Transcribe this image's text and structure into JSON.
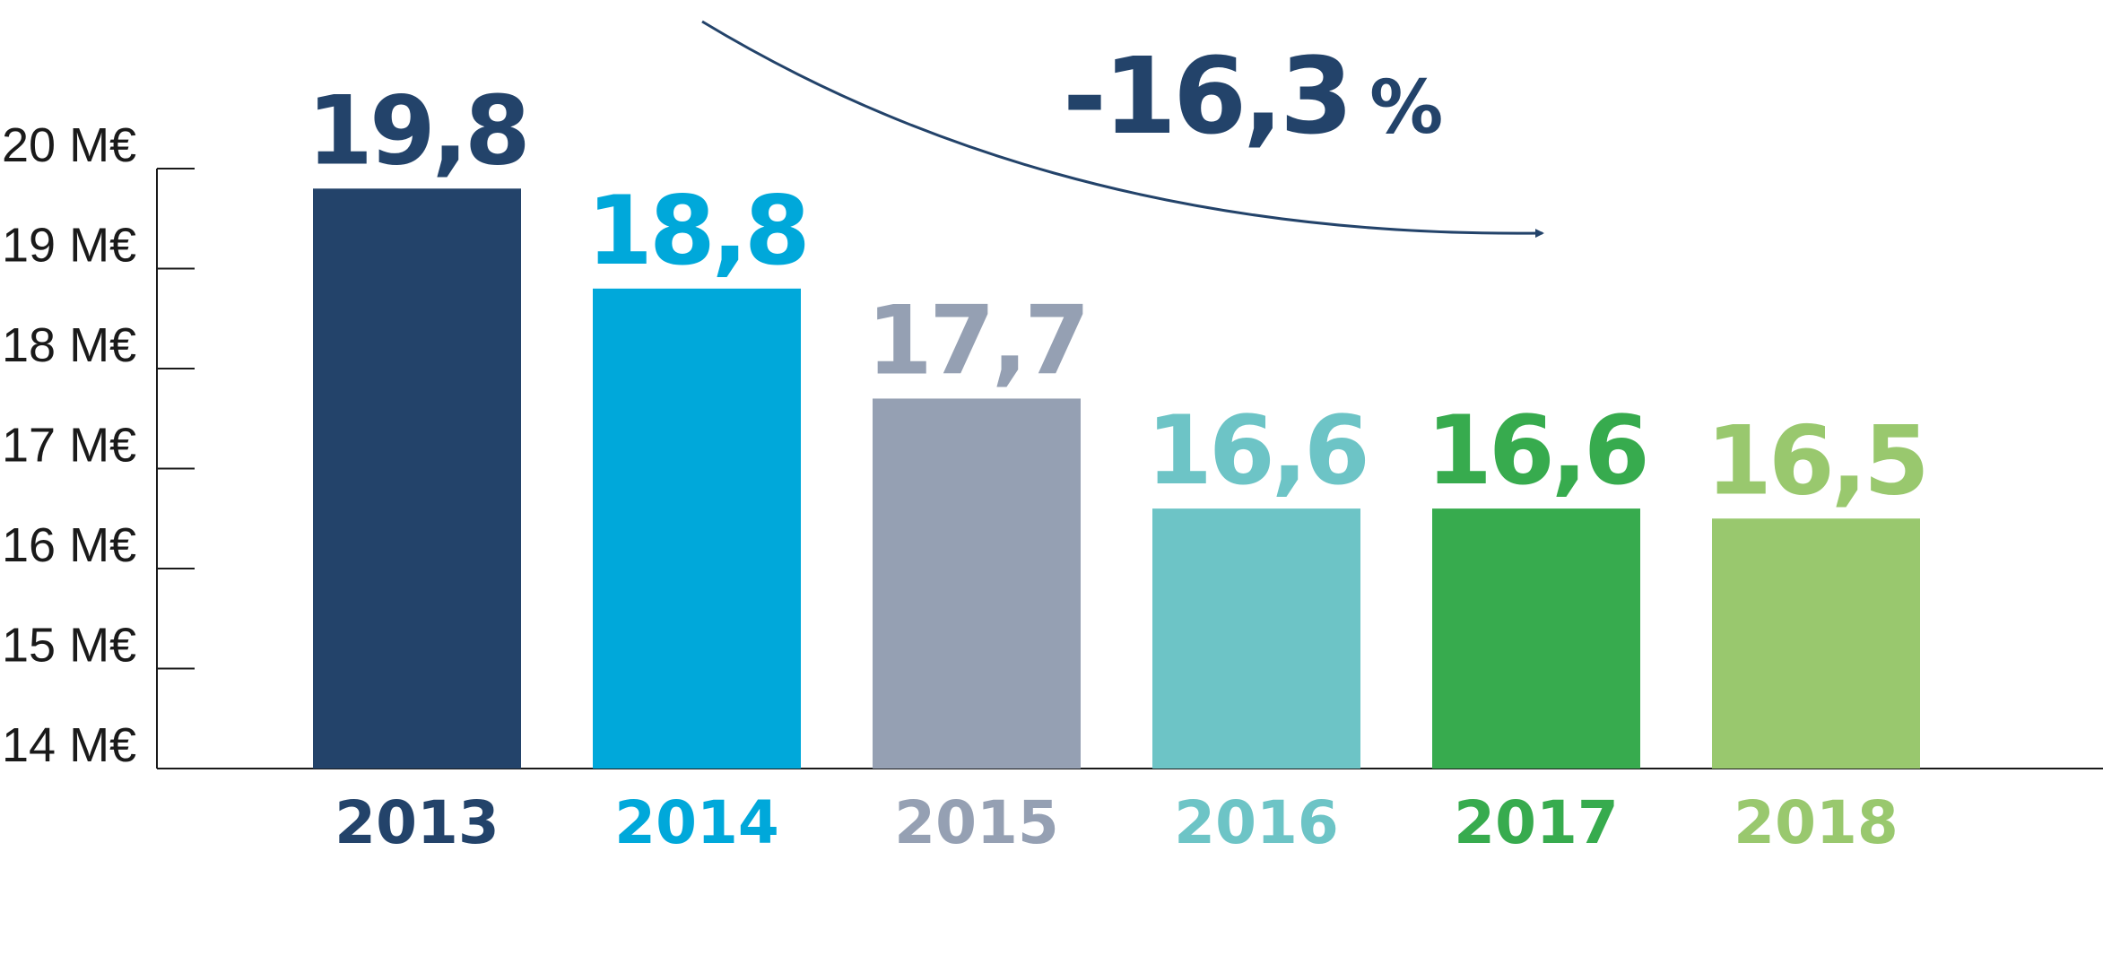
{
  "chart_data": {
    "type": "bar",
    "title": "",
    "xlabel": "",
    "ylabel": "",
    "categories": [
      "2013",
      "2014",
      "2015",
      "2016",
      "2017",
      "2018"
    ],
    "values": [
      19.8,
      18.8,
      17.7,
      16.6,
      16.6,
      16.5
    ],
    "value_labels": [
      "19,8",
      "18,8",
      "17,7",
      "16,6",
      "16,6",
      "16,5"
    ],
    "colors": [
      "#23436a",
      "#00a8da",
      "#95a0b3",
      "#6dc4c6",
      "#37ab4e",
      "#99c86e"
    ],
    "ylim": [
      14,
      20
    ],
    "yticks": [
      {
        "value": 20,
        "label": "20 M€"
      },
      {
        "value": 19,
        "label": "19 M€"
      },
      {
        "value": 18,
        "label": "18 M€"
      },
      {
        "value": 17,
        "label": "17 M€"
      },
      {
        "value": 16,
        "label": "16 M€"
      },
      {
        "value": 15,
        "label": "15 M€"
      },
      {
        "value": 14,
        "label": "14 M€"
      }
    ],
    "grid": false,
    "legend": "none",
    "annotation": {
      "value": "-16,3",
      "unit": "%",
      "color": "#23436a"
    },
    "axis_color": "#1a1a1a"
  }
}
